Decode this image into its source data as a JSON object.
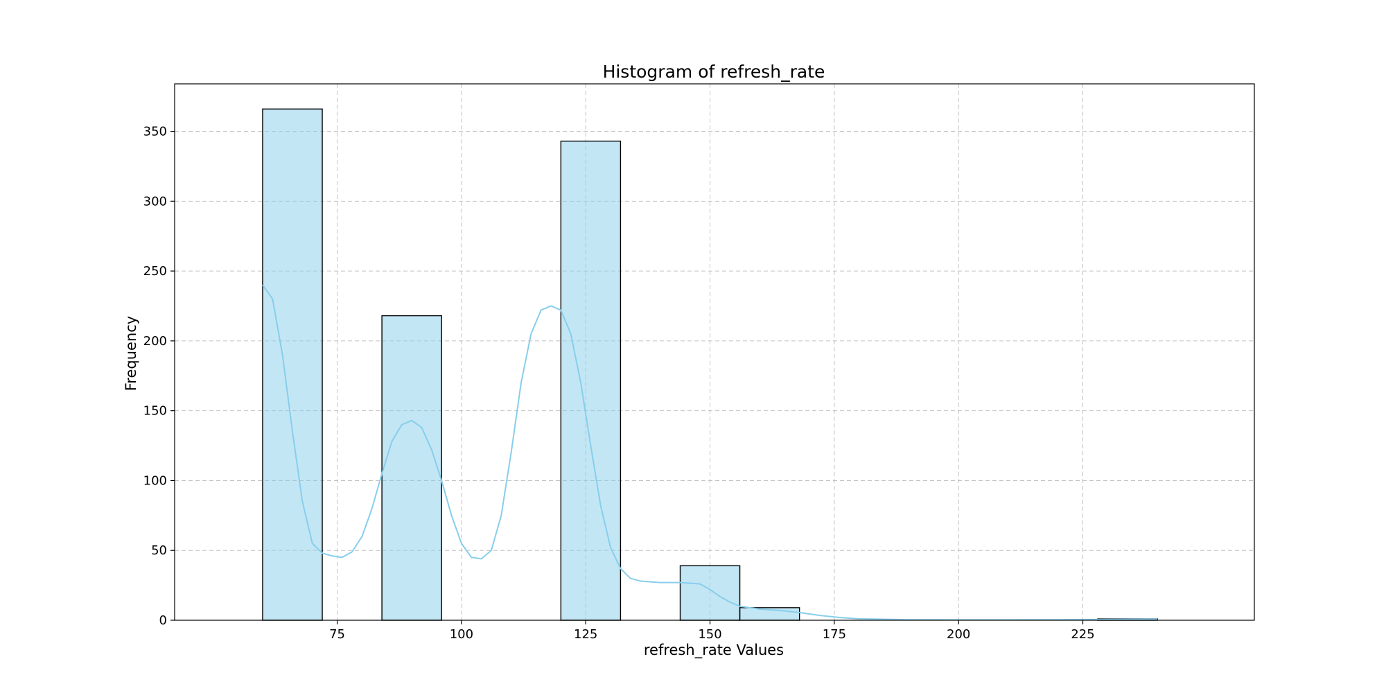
{
  "chart_data": {
    "type": "bar",
    "title": "Histogram of refresh_rate",
    "xlabel": "refresh_rate Values",
    "ylabel": "Frequency",
    "xlim": [
      42.3,
      259.5
    ],
    "ylim": [
      0,
      384
    ],
    "xticks": [
      75,
      100,
      125,
      150,
      175,
      200,
      225
    ],
    "yticks": [
      0,
      50,
      100,
      150,
      200,
      250,
      300,
      350
    ],
    "grid": true,
    "bar_color": "#87CEEB",
    "kde_color": "#87CEEB",
    "bins": [
      {
        "x0": 60,
        "x1": 72,
        "count": 366
      },
      {
        "x0": 72,
        "x1": 84,
        "count": 0
      },
      {
        "x0": 84,
        "x1": 96,
        "count": 218
      },
      {
        "x0": 96,
        "x1": 108,
        "count": 0
      },
      {
        "x0": 108,
        "x1": 120,
        "count": 0
      },
      {
        "x0": 120,
        "x1": 132,
        "count": 343
      },
      {
        "x0": 132,
        "x1": 144,
        "count": 0
      },
      {
        "x0": 144,
        "x1": 156,
        "count": 39
      },
      {
        "x0": 156,
        "x1": 168,
        "count": 9
      },
      {
        "x0": 168,
        "x1": 180,
        "count": 0
      },
      {
        "x0": 180,
        "x1": 192,
        "count": 0
      },
      {
        "x0": 192,
        "x1": 204,
        "count": 0
      },
      {
        "x0": 204,
        "x1": 216,
        "count": 0
      },
      {
        "x0": 216,
        "x1": 228,
        "count": 0
      },
      {
        "x0": 228,
        "x1": 240,
        "count": 1
      }
    ],
    "kde": {
      "x": [
        60,
        62,
        64,
        66,
        68,
        70,
        72,
        74,
        76,
        78,
        80,
        82,
        84,
        86,
        88,
        90,
        92,
        94,
        96,
        98,
        100,
        102,
        104,
        106,
        108,
        110,
        112,
        114,
        116,
        118,
        120,
        122,
        124,
        126,
        128,
        130,
        132,
        134,
        136,
        138,
        140,
        142,
        144,
        146,
        148,
        150,
        152,
        154,
        156,
        160,
        164,
        168,
        172,
        176,
        180,
        190,
        200,
        210,
        220,
        230,
        240
      ],
      "y": [
        240,
        230,
        190,
        135,
        85,
        55,
        48,
        46,
        45,
        49,
        60,
        80,
        105,
        128,
        140,
        143,
        138,
        122,
        100,
        75,
        55,
        45,
        44,
        50,
        75,
        120,
        170,
        205,
        222,
        225,
        222,
        205,
        170,
        125,
        82,
        52,
        37,
        30,
        28,
        27.5,
        27,
        27,
        27,
        26.5,
        26,
        22,
        17,
        13,
        10,
        8,
        7,
        5.5,
        3.5,
        2,
        1,
        0.4,
        0.3,
        0.3,
        0.4,
        0.6,
        0.8
      ]
    }
  }
}
